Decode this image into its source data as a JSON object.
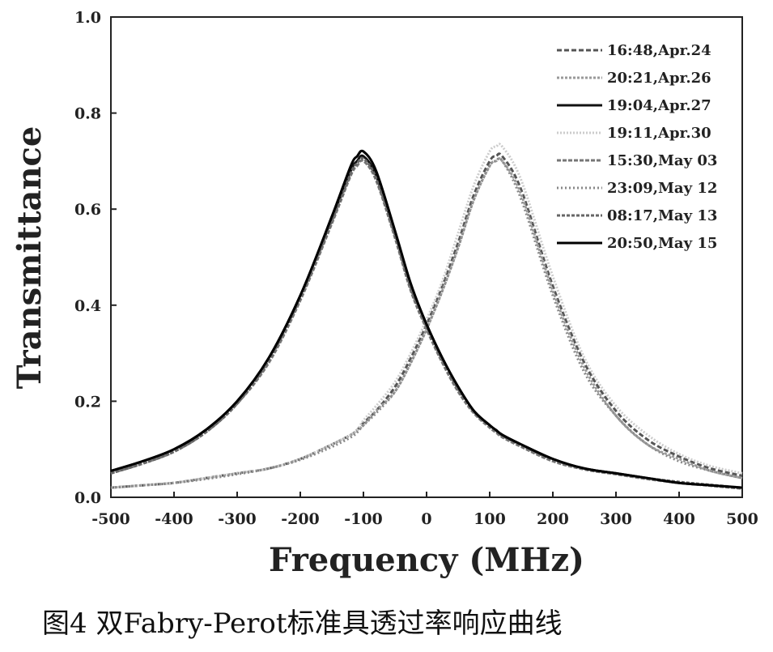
{
  "caption": "图4 双Fabry-Perot标准具透过率响应曲线",
  "chart_data": {
    "type": "line",
    "xlabel": "Frequency (MHz)",
    "ylabel": "Transmittance",
    "xlim": [
      -500,
      500
    ],
    "ylim": [
      0,
      1.0
    ],
    "x_ticks": [
      "-500",
      "-400",
      "-300",
      "-200",
      "-100",
      "0",
      "100",
      "200",
      "300",
      "400",
      "500"
    ],
    "y_ticks": [
      "0.0",
      "0.2",
      "0.4",
      "0.6",
      "0.8",
      "1.0"
    ],
    "grid": false,
    "legend_position": "top-right",
    "x": [
      -500,
      -450,
      -400,
      -350,
      -300,
      -250,
      -200,
      -150,
      -120,
      -110,
      -100,
      -80,
      -50,
      -25,
      0,
      25,
      50,
      75,
      100,
      110,
      120,
      150,
      200,
      250,
      300,
      350,
      400,
      450,
      500
    ],
    "series": [
      {
        "name": "16:48,Apr.24",
        "color": "#555555",
        "dash": "6,3",
        "values": [
          0.02,
          0.025,
          0.03,
          0.04,
          0.05,
          0.06,
          0.08,
          0.11,
          0.13,
          0.14,
          0.155,
          0.18,
          0.23,
          0.29,
          0.36,
          0.44,
          0.53,
          0.63,
          0.7,
          0.71,
          0.71,
          0.64,
          0.44,
          0.28,
          0.18,
          0.12,
          0.085,
          0.06,
          0.045
        ]
      },
      {
        "name": "20:21,Apr.26",
        "color": "#999999",
        "dash": "3,2",
        "values": [
          0.02,
          0.025,
          0.03,
          0.04,
          0.05,
          0.06,
          0.08,
          0.11,
          0.13,
          0.14,
          0.15,
          0.18,
          0.22,
          0.28,
          0.35,
          0.43,
          0.52,
          0.62,
          0.69,
          0.7,
          0.7,
          0.63,
          0.43,
          0.27,
          0.17,
          0.11,
          0.08,
          0.055,
          0.04
        ]
      },
      {
        "name": "19:04,Apr.27",
        "color": "#111111",
        "dash": "",
        "values": [
          0.055,
          0.075,
          0.1,
          0.14,
          0.2,
          0.29,
          0.42,
          0.58,
          0.68,
          0.7,
          0.71,
          0.67,
          0.55,
          0.44,
          0.36,
          0.29,
          0.23,
          0.18,
          0.15,
          0.14,
          0.13,
          0.11,
          0.08,
          0.06,
          0.05,
          0.04,
          0.03,
          0.025,
          0.02
        ]
      },
      {
        "name": "19:11,Apr.30",
        "color": "#cccccc",
        "dash": "2,2",
        "values": [
          0.02,
          0.025,
          0.03,
          0.04,
          0.05,
          0.06,
          0.08,
          0.11,
          0.13,
          0.14,
          0.16,
          0.19,
          0.24,
          0.3,
          0.37,
          0.45,
          0.55,
          0.65,
          0.72,
          0.73,
          0.73,
          0.66,
          0.46,
          0.29,
          0.19,
          0.13,
          0.09,
          0.065,
          0.05
        ]
      },
      {
        "name": "15:30,May 03",
        "color": "#777777",
        "dash": "5,2",
        "values": [
          0.05,
          0.07,
          0.095,
          0.135,
          0.195,
          0.28,
          0.41,
          0.57,
          0.67,
          0.69,
          0.7,
          0.66,
          0.54,
          0.43,
          0.35,
          0.28,
          0.22,
          0.175,
          0.145,
          0.135,
          0.125,
          0.105,
          0.075,
          0.058,
          0.048,
          0.038,
          0.03,
          0.024,
          0.018
        ]
      },
      {
        "name": "23:09,May 12",
        "color": "#888888",
        "dash": "2,3",
        "values": [
          0.02,
          0.025,
          0.03,
          0.038,
          0.048,
          0.06,
          0.078,
          0.105,
          0.125,
          0.135,
          0.15,
          0.175,
          0.22,
          0.28,
          0.35,
          0.43,
          0.52,
          0.62,
          0.69,
          0.7,
          0.7,
          0.62,
          0.42,
          0.26,
          0.17,
          0.11,
          0.075,
          0.055,
          0.04
        ]
      },
      {
        "name": "08:17,May 13",
        "color": "#666666",
        "dash": "4,2",
        "values": [
          0.05,
          0.07,
          0.095,
          0.135,
          0.195,
          0.285,
          0.415,
          0.575,
          0.675,
          0.695,
          0.705,
          0.665,
          0.545,
          0.435,
          0.355,
          0.285,
          0.225,
          0.178,
          0.148,
          0.138,
          0.128,
          0.108,
          0.078,
          0.06,
          0.05,
          0.04,
          0.032,
          0.026,
          0.02
        ]
      },
      {
        "name": "20:50,May 15",
        "color": "#000000",
        "dash": "",
        "values": [
          0.055,
          0.075,
          0.1,
          0.14,
          0.2,
          0.29,
          0.42,
          0.585,
          0.69,
          0.71,
          0.72,
          0.68,
          0.555,
          0.445,
          0.36,
          0.29,
          0.23,
          0.18,
          0.15,
          0.14,
          0.13,
          0.11,
          0.08,
          0.06,
          0.05,
          0.04,
          0.03,
          0.025,
          0.02
        ]
      }
    ]
  }
}
